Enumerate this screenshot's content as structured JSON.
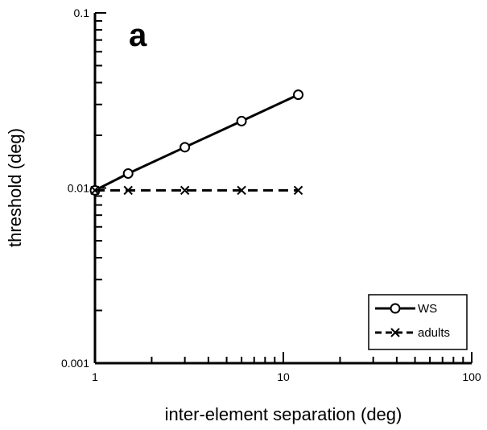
{
  "chart_data": {
    "type": "line",
    "panel_label": "a",
    "xlabel": "inter-element separation (deg)",
    "ylabel": "threshold (deg)",
    "x_scale": "log",
    "y_scale": "log",
    "xlim": [
      1,
      100
    ],
    "ylim": [
      0.001,
      0.1
    ],
    "x_tick_labels": [
      "1",
      "10",
      "100"
    ],
    "y_tick_labels": [
      "0.001",
      "0.01",
      "0.1"
    ],
    "grid": false,
    "legend_position": "bottom-right",
    "series": [
      {
        "name": "WS",
        "marker": "circle",
        "line_style": "solid",
        "x": [
          1,
          1.5,
          3,
          6,
          12
        ],
        "y": [
          0.0097,
          0.0121,
          0.0171,
          0.0241,
          0.0341
        ]
      },
      {
        "name": "adults",
        "marker": "x",
        "line_style": "dashed",
        "x": [
          1,
          1.5,
          3,
          6,
          12
        ],
        "y": [
          0.0097,
          0.0097,
          0.0097,
          0.0097,
          0.0097
        ]
      }
    ]
  }
}
